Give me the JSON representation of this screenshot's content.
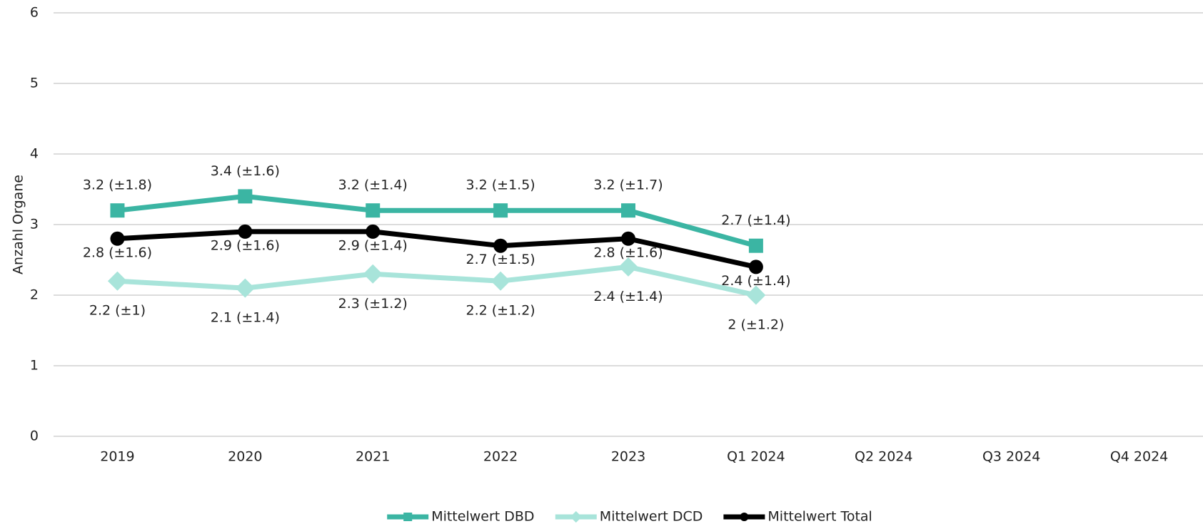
{
  "chart_data": {
    "type": "line",
    "y_label": "Anzahl Organe",
    "categories": [
      "2019",
      "2020",
      "2021",
      "2022",
      "2023",
      "Q1 2024",
      "Q2 2024",
      "Q3 2024",
      "Q4 2024"
    ],
    "ylim": [
      0,
      6
    ],
    "yticks": [
      0,
      1,
      2,
      3,
      4,
      5,
      6
    ],
    "grid": true,
    "legend": "bottom",
    "series": [
      {
        "name": "Mittelwert DBD",
        "color": "#3bb5a3",
        "marker": "square",
        "values": [
          3.2,
          3.4,
          3.2,
          3.2,
          3.2,
          2.7,
          null,
          null,
          null
        ],
        "value_labels": [
          "3.2 (±1.8)",
          "3.4 (±1.6)",
          "3.2 (±1.4)",
          "3.2 (±1.5)",
          "3.2 (±1.7)",
          "2.7 (±1.4)",
          null,
          null,
          null
        ]
      },
      {
        "name": "Mittelwert DCD",
        "color": "#a8e4da",
        "marker": "diamond",
        "values": [
          2.2,
          2.1,
          2.3,
          2.2,
          2.4,
          2,
          null,
          null,
          null
        ],
        "value_labels": [
          "2.2 (±1)",
          "2.1 (±1.4)",
          "2.3 (±1.2)",
          "2.2 (±1.2)",
          "2.4 (±1.4)",
          "2 (±1.2)",
          null,
          null,
          null
        ]
      },
      {
        "name": "Mittelwert Total",
        "color": "#000000",
        "marker": "circle",
        "values": [
          2.8,
          2.9,
          2.9,
          2.7,
          2.8,
          2.4,
          null,
          null,
          null
        ],
        "value_labels": [
          "2.8 (±1.6)",
          "2.9 (±1.6)",
          "2.9 (±1.4)",
          "2.7 (±1.5)",
          "2.8 (±1.6)",
          "2.4 (±1.4)",
          null,
          null,
          null
        ]
      }
    ]
  }
}
